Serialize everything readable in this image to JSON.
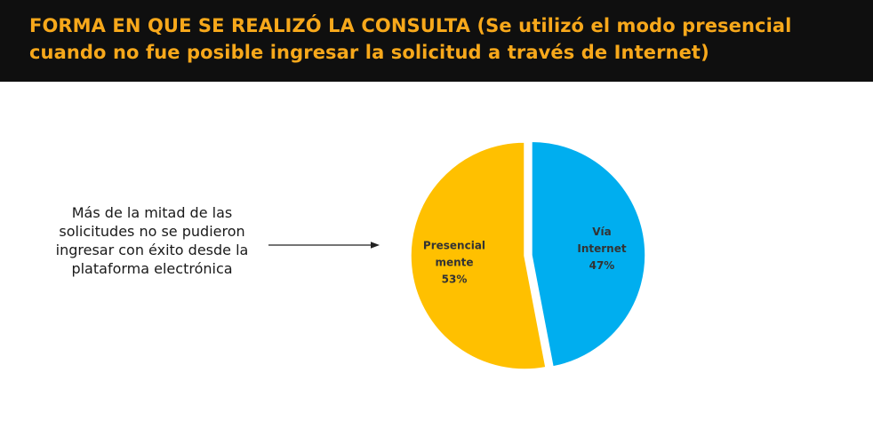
{
  "title": "FORMA EN QUE SE REALIZÓ LA CONSULTA (Se utilizó el modo presencial cuando no fue posible ingresar la solicitud a través de Internet)",
  "note": "Más de la mitad de las solicitudes no se pudieron ingresar con éxito desde la plataforma electrónica",
  "colors": {
    "title_bar": "#0f0f0f",
    "title_text": "#f7a81b",
    "internet": "#00aeef",
    "presencial": "#ffc000"
  },
  "chart_data": {
    "type": "pie",
    "title": "",
    "slices": [
      {
        "label_lines": [
          "Vía",
          "Internet"
        ],
        "value": 47,
        "value_label": "47%",
        "color": "#00aeef",
        "exploded": true
      },
      {
        "label_lines": [
          "Presencial",
          "mente"
        ],
        "value": 53,
        "value_label": "53%",
        "color": "#ffc000",
        "exploded": false
      }
    ]
  }
}
